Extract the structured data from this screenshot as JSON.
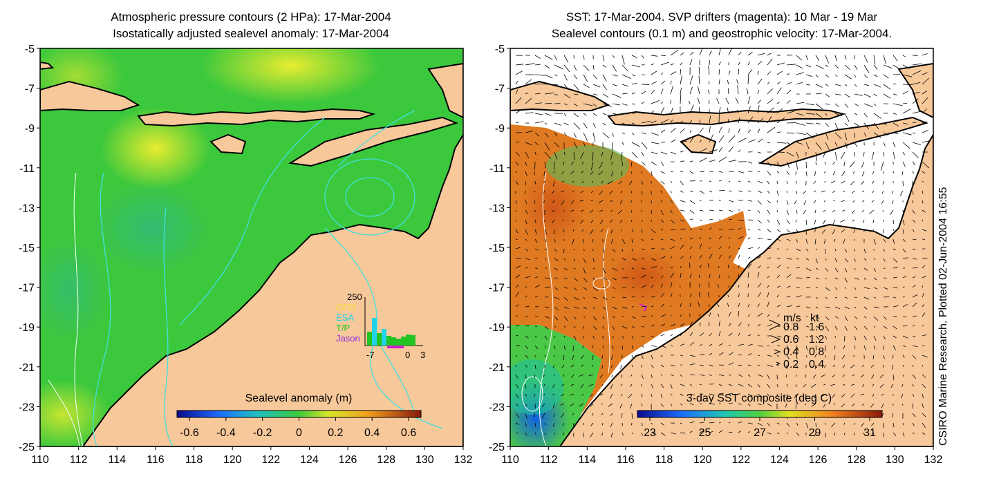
{
  "left_panel": {
    "title_line1": "Atmospheric pressure contours (2 HPa): 17-Mar-2004",
    "title_line2": "Isostatically adjusted sealevel anomaly: 17-Mar-2004",
    "colorbar_label": "Sealevel anomaly (m)",
    "colorbar_ticks": [
      "-0.6",
      "-0.4",
      "-0.2",
      "0",
      "0.2",
      "0.4",
      "0.6"
    ],
    "colors": {
      "ocean_base": "#3cc83c",
      "land": "#f7c89a",
      "coast": "#000000",
      "contour": "#40e0e0"
    },
    "inset": {
      "ymax_label": "250",
      "legend": [
        {
          "name": "GFO",
          "color": "#f5e23a"
        },
        {
          "name": "ESA",
          "color": "#22d3e6"
        },
        {
          "name": "T/P",
          "color": "#22c322"
        },
        {
          "name": "Jason",
          "color": "#8a2be2"
        }
      ],
      "x_labels": [
        "-7",
        "0",
        "3"
      ]
    }
  },
  "right_panel": {
    "title_line1": "SST: 17-Mar-2004. SVP drifters (magenta): 10 Mar - 19 Mar",
    "title_line2": "Sealevel contours (0.1 m) and geostrophic velocity: 17-Mar-2004.",
    "colorbar_label": "3-day SST composite (deg C)",
    "colorbar_ticks": [
      "23",
      "25",
      "27",
      "29",
      "31"
    ],
    "speed_legend": {
      "header_ms": "m/s",
      "header_kt": "kt",
      "rows": [
        {
          "ms": "0.8",
          "kt": "1.6"
        },
        {
          "ms": "0.6",
          "kt": "1.2"
        },
        {
          "ms": "0.4",
          "kt": "0.8"
        },
        {
          "ms": "0.2",
          "kt": "0.4"
        }
      ]
    }
  },
  "axes": {
    "y_ticks": [
      "-5",
      "-7",
      "-9",
      "-11",
      "-13",
      "-15",
      "-17",
      "-19",
      "-21",
      "-23",
      "-25"
    ],
    "x_ticks": [
      "110",
      "112",
      "114",
      "116",
      "118",
      "120",
      "122",
      "124",
      "126",
      "128",
      "130",
      "132"
    ]
  },
  "side_note": "CSIRO Marine Research. Plotted 02-Jun-2004 16:55"
}
